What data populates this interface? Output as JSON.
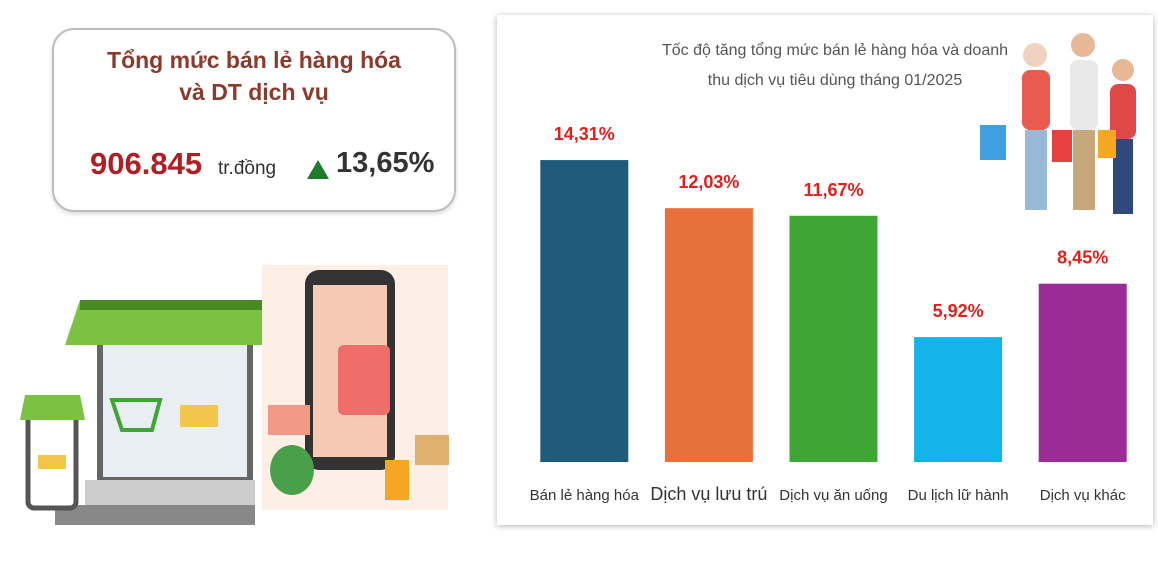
{
  "summary": {
    "title": "Tổng mức bán lẻ hàng hóa và DT dịch vụ",
    "value": "906.845",
    "unit": "tr.đồng",
    "growth": "13,65%"
  },
  "chart_data": {
    "type": "bar",
    "title": "Tốc độ tăng tổng mức bán lẻ hàng hóa và doanh thu dịch vụ tiêu dùng tháng 01/2025",
    "categories": [
      "Bán lẻ hàng hóa",
      "Dịch vụ lưu trú",
      "Dịch vụ ăn uống",
      "Du lịch lữ hành",
      "Dịch vụ khác"
    ],
    "values": [
      14.31,
      12.03,
      11.67,
      5.92,
      8.45
    ],
    "value_labels": [
      "14,31%",
      "12,03%",
      "11,67%",
      "5,92%",
      "8,45%"
    ],
    "colors": [
      "#1f5b7a",
      "#e8703a",
      "#3fa535",
      "#14b4e8",
      "#9b2c96"
    ]
  }
}
